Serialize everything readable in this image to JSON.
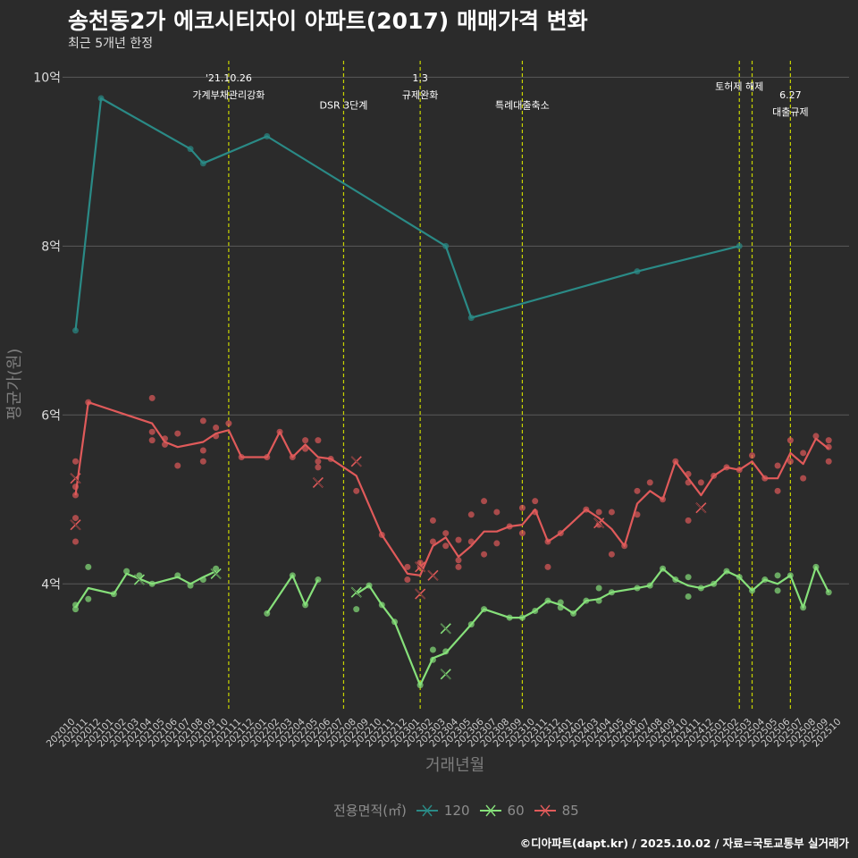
{
  "header": {
    "title": "송천동2가 에코시티자이 아파트(2017) 매매가격 변화",
    "subtitle": "최근 5개년 한정"
  },
  "caption": "©디아파트(dapt.kr) / 2025.10.02 / 자료=국토교통부 실거래가",
  "colors": {
    "background": "#2b2b2b",
    "s120": "#2a8a86",
    "s60": "#86e07a",
    "s85": "#e05a5a",
    "vline": "#c8d400",
    "grid": "#5a5a5a"
  },
  "chart_data": {
    "type": "line",
    "xlabel": "거래년월",
    "ylabel": "평균가(원)",
    "ylim": [
      2.5,
      10.3
    ],
    "y_ticks": [
      {
        "v": 4,
        "label": "4억"
      },
      {
        "v": 6,
        "label": "6억"
      },
      {
        "v": 8,
        "label": "8억"
      },
      {
        "v": 10,
        "label": "10억"
      }
    ],
    "x_ticks": [
      "202010",
      "202011",
      "202012",
      "202101",
      "202102",
      "202103",
      "202104",
      "202105",
      "202106",
      "202107",
      "202108",
      "202109",
      "202110",
      "202111",
      "202112",
      "202201",
      "202202",
      "202203",
      "202204",
      "202205",
      "202206",
      "202207",
      "202208",
      "202209",
      "202210",
      "202211",
      "202212",
      "202301",
      "202302",
      "202303",
      "202304",
      "202305",
      "202306",
      "202307",
      "202308",
      "202309",
      "202310",
      "202311",
      "202312",
      "202401",
      "202402",
      "202403",
      "202404",
      "202405",
      "202406",
      "202407",
      "202408",
      "202409",
      "202410",
      "202411",
      "202412",
      "202501",
      "202502",
      "202503",
      "202504",
      "202505",
      "202506",
      "202507",
      "202508",
      "202509",
      "202510"
    ],
    "legend": {
      "title": "전용면적(㎡)",
      "items": [
        "120",
        "60",
        "85"
      ]
    },
    "annotations": [
      {
        "m": 12,
        "lines": [
          "'21.10.26",
          "가계부채관리강화"
        ],
        "y": [
          9.95,
          9.75
        ]
      },
      {
        "m": 21,
        "lines": [
          "DSR 3단계"
        ],
        "y": [
          9.63
        ]
      },
      {
        "m": 27,
        "lines": [
          "1.3",
          "규제완화"
        ],
        "y": [
          9.95,
          9.75
        ]
      },
      {
        "m": 35,
        "lines": [
          "특례대출축소"
        ],
        "y": [
          9.63
        ]
      },
      {
        "m": 52,
        "lines": [
          "토허제 해제"
        ],
        "y": [
          9.85
        ]
      },
      {
        "m": 56,
        "lines": [
          "6.27",
          "대출규제"
        ],
        "y": [
          9.75,
          9.55
        ]
      }
    ],
    "vlines": [
      12,
      21,
      27,
      35,
      52,
      53,
      56
    ],
    "series": [
      {
        "name": "120",
        "key": "s120",
        "line": [
          [
            0,
            7.0
          ],
          [
            2,
            9.75
          ],
          [
            9,
            9.15
          ],
          [
            10,
            8.98
          ],
          [
            15,
            9.3
          ],
          [
            29,
            8.0
          ],
          [
            31,
            7.15
          ],
          [
            44,
            7.7
          ],
          [
            52,
            8.0
          ]
        ],
        "points": [
          [
            0,
            7.0
          ],
          [
            2,
            9.75
          ],
          [
            9,
            9.15
          ],
          [
            10,
            8.98
          ],
          [
            15,
            9.3
          ],
          [
            29,
            8.0
          ],
          [
            31,
            7.15
          ],
          [
            44,
            7.7
          ],
          [
            52,
            8.0
          ]
        ],
        "cross": []
      },
      {
        "name": "60",
        "key": "s60",
        "line": [
          [
            0,
            3.72
          ],
          [
            1,
            3.95
          ],
          [
            3,
            3.88
          ],
          [
            4,
            4.12
          ],
          [
            6,
            4.0
          ],
          [
            8,
            4.08
          ],
          [
            9,
            4.0
          ],
          [
            10,
            4.08
          ],
          [
            11,
            4.15
          ]
        ],
        "line2": [
          [
            15,
            3.65
          ],
          [
            17,
            4.1
          ],
          [
            18,
            3.75
          ],
          [
            19,
            4.05
          ]
        ],
        "line3": [
          [
            22,
            3.88
          ],
          [
            23,
            3.98
          ],
          [
            24,
            3.75
          ],
          [
            25,
            3.55
          ],
          [
            27,
            2.8
          ],
          [
            28,
            3.12
          ],
          [
            29,
            3.18
          ],
          [
            30,
            3.35
          ],
          [
            31,
            3.52
          ],
          [
            32,
            3.7
          ],
          [
            34,
            3.6
          ],
          [
            35,
            3.6
          ],
          [
            36,
            3.68
          ],
          [
            37,
            3.8
          ],
          [
            38,
            3.75
          ],
          [
            39,
            3.65
          ],
          [
            40,
            3.8
          ],
          [
            41,
            3.82
          ],
          [
            42,
            3.9
          ],
          [
            44,
            3.95
          ],
          [
            45,
            3.98
          ],
          [
            46,
            4.18
          ],
          [
            47,
            4.05
          ],
          [
            48,
            3.98
          ],
          [
            49,
            3.95
          ],
          [
            50,
            4.0
          ],
          [
            51,
            4.15
          ],
          [
            52,
            4.08
          ],
          [
            53,
            3.92
          ],
          [
            54,
            4.05
          ],
          [
            55,
            4.0
          ],
          [
            56,
            4.1
          ],
          [
            57,
            3.72
          ],
          [
            58,
            4.2
          ],
          [
            59,
            3.9
          ]
        ],
        "points": [
          [
            0,
            3.7
          ],
          [
            0,
            3.75
          ],
          [
            1,
            3.82
          ],
          [
            1,
            4.2
          ],
          [
            3,
            3.88
          ],
          [
            4,
            4.15
          ],
          [
            5,
            4.1
          ],
          [
            6,
            4.0
          ],
          [
            8,
            4.1
          ],
          [
            9,
            3.98
          ],
          [
            10,
            4.05
          ],
          [
            11,
            4.18
          ],
          [
            15,
            3.65
          ],
          [
            17,
            4.1
          ],
          [
            18,
            3.75
          ],
          [
            19,
            4.05
          ],
          [
            22,
            3.7
          ],
          [
            23,
            3.98
          ],
          [
            24,
            3.75
          ],
          [
            25,
            3.55
          ],
          [
            27,
            2.8
          ],
          [
            28,
            3.1
          ],
          [
            28,
            3.22
          ],
          [
            29,
            3.2
          ],
          [
            31,
            3.52
          ],
          [
            32,
            3.7
          ],
          [
            34,
            3.6
          ],
          [
            35,
            3.6
          ],
          [
            36,
            3.68
          ],
          [
            37,
            3.8
          ],
          [
            38,
            3.72
          ],
          [
            38,
            3.78
          ],
          [
            39,
            3.65
          ],
          [
            40,
            3.8
          ],
          [
            41,
            3.95
          ],
          [
            41,
            3.8
          ],
          [
            42,
            3.9
          ],
          [
            44,
            3.95
          ],
          [
            45,
            3.98
          ],
          [
            46,
            4.18
          ],
          [
            47,
            4.05
          ],
          [
            48,
            4.08
          ],
          [
            48,
            3.85
          ],
          [
            49,
            3.95
          ],
          [
            50,
            4.0
          ],
          [
            51,
            4.15
          ],
          [
            52,
            4.08
          ],
          [
            53,
            3.92
          ],
          [
            54,
            4.05
          ],
          [
            55,
            3.92
          ],
          [
            55,
            4.1
          ],
          [
            56,
            4.1
          ],
          [
            57,
            3.72
          ],
          [
            58,
            4.2
          ],
          [
            59,
            3.9
          ]
        ],
        "cross": [
          [
            5,
            4.05
          ],
          [
            11,
            4.12
          ],
          [
            22,
            3.9
          ],
          [
            29,
            3.47
          ],
          [
            29,
            2.93
          ]
        ]
      },
      {
        "name": "85",
        "key": "s85",
        "line": [
          [
            0,
            5.05
          ],
          [
            1,
            6.15
          ],
          [
            6,
            5.9
          ],
          [
            7,
            5.68
          ],
          [
            8,
            5.62
          ],
          [
            10,
            5.68
          ],
          [
            11,
            5.78
          ],
          [
            12,
            5.82
          ],
          [
            13,
            5.5
          ],
          [
            15,
            5.5
          ],
          [
            16,
            5.8
          ],
          [
            17,
            5.5
          ],
          [
            18,
            5.65
          ],
          [
            19,
            5.5
          ],
          [
            20,
            5.48
          ],
          [
            22,
            5.28
          ],
          [
            24,
            4.58
          ],
          [
            26,
            4.12
          ],
          [
            27,
            4.1
          ],
          [
            28,
            4.45
          ],
          [
            29,
            4.55
          ],
          [
            30,
            4.32
          ],
          [
            31,
            4.45
          ],
          [
            32,
            4.62
          ],
          [
            33,
            4.62
          ],
          [
            34,
            4.68
          ],
          [
            35,
            4.7
          ],
          [
            36,
            4.88
          ],
          [
            37,
            4.5
          ],
          [
            38,
            4.6
          ],
          [
            40,
            4.88
          ],
          [
            41,
            4.78
          ],
          [
            42,
            4.65
          ],
          [
            43,
            4.45
          ],
          [
            44,
            4.95
          ],
          [
            45,
            5.1
          ],
          [
            46,
            5.0
          ],
          [
            47,
            5.45
          ],
          [
            48,
            5.25
          ],
          [
            49,
            5.05
          ],
          [
            50,
            5.28
          ],
          [
            51,
            5.38
          ],
          [
            52,
            5.35
          ],
          [
            53,
            5.45
          ],
          [
            54,
            5.25
          ],
          [
            55,
            5.25
          ],
          [
            56,
            5.55
          ],
          [
            57,
            5.42
          ],
          [
            58,
            5.72
          ],
          [
            59,
            5.6
          ]
        ],
        "points": [
          [
            0,
            4.5
          ],
          [
            0,
            4.78
          ],
          [
            0,
            5.05
          ],
          [
            0,
            5.15
          ],
          [
            0,
            5.45
          ],
          [
            1,
            6.15
          ],
          [
            6,
            6.2
          ],
          [
            6,
            5.8
          ],
          [
            6,
            5.7
          ],
          [
            7,
            5.65
          ],
          [
            7,
            5.72
          ],
          [
            8,
            5.4
          ],
          [
            8,
            5.78
          ],
          [
            10,
            5.58
          ],
          [
            10,
            5.45
          ],
          [
            10,
            5.93
          ],
          [
            11,
            5.85
          ],
          [
            11,
            5.75
          ],
          [
            12,
            5.9
          ],
          [
            13,
            5.5
          ],
          [
            15,
            5.5
          ],
          [
            16,
            5.8
          ],
          [
            17,
            5.5
          ],
          [
            18,
            5.6
          ],
          [
            18,
            5.7
          ],
          [
            19,
            5.38
          ],
          [
            19,
            5.45
          ],
          [
            19,
            5.7
          ],
          [
            20,
            5.48
          ],
          [
            22,
            5.1
          ],
          [
            24,
            4.58
          ],
          [
            26,
            4.05
          ],
          [
            26,
            4.2
          ],
          [
            27,
            4.2
          ],
          [
            27,
            4.25
          ],
          [
            28,
            4.5
          ],
          [
            28,
            4.75
          ],
          [
            29,
            4.6
          ],
          [
            29,
            4.45
          ],
          [
            30,
            4.2
          ],
          [
            30,
            4.28
          ],
          [
            30,
            4.52
          ],
          [
            31,
            4.5
          ],
          [
            31,
            4.82
          ],
          [
            32,
            4.35
          ],
          [
            32,
            4.98
          ],
          [
            33,
            4.48
          ],
          [
            33,
            4.85
          ],
          [
            34,
            4.68
          ],
          [
            35,
            4.6
          ],
          [
            35,
            4.9
          ],
          [
            36,
            4.85
          ],
          [
            36,
            4.98
          ],
          [
            37,
            4.2
          ],
          [
            37,
            4.5
          ],
          [
            38,
            4.6
          ],
          [
            40,
            4.88
          ],
          [
            41,
            4.7
          ],
          [
            41,
            4.85
          ],
          [
            42,
            4.35
          ],
          [
            42,
            4.85
          ],
          [
            43,
            4.45
          ],
          [
            44,
            4.82
          ],
          [
            44,
            5.1
          ],
          [
            45,
            5.2
          ],
          [
            46,
            5.0
          ],
          [
            47,
            5.45
          ],
          [
            48,
            5.3
          ],
          [
            48,
            5.2
          ],
          [
            48,
            4.75
          ],
          [
            49,
            5.2
          ],
          [
            50,
            5.28
          ],
          [
            51,
            5.38
          ],
          [
            52,
            5.35
          ],
          [
            53,
            5.52
          ],
          [
            54,
            5.25
          ],
          [
            55,
            5.1
          ],
          [
            55,
            5.4
          ],
          [
            56,
            5.7
          ],
          [
            56,
            5.45
          ],
          [
            57,
            5.25
          ],
          [
            57,
            5.55
          ],
          [
            58,
            5.75
          ],
          [
            59,
            5.7
          ],
          [
            59,
            5.45
          ],
          [
            59,
            5.62
          ]
        ],
        "cross": [
          [
            0,
            5.25
          ],
          [
            0,
            4.7
          ],
          [
            19,
            5.2
          ],
          [
            22,
            5.45
          ],
          [
            27,
            3.88
          ],
          [
            27,
            4.2
          ],
          [
            28,
            4.1
          ],
          [
            41,
            4.72
          ],
          [
            49,
            4.9
          ]
        ]
      }
    ]
  }
}
